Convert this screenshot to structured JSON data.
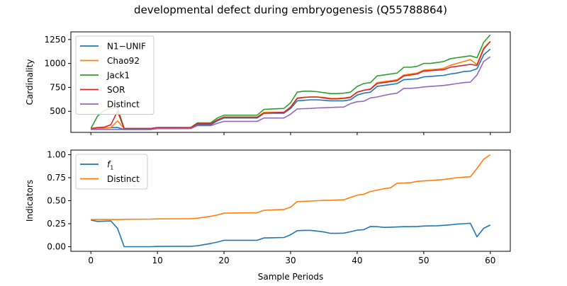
{
  "figure_title": "developmental defect during embryogenesis (Q55788864)",
  "x_axis_label": "Sample Periods",
  "chart_data": [
    {
      "type": "line",
      "ylabel": "Cardinality",
      "xlim": [
        -3,
        63
      ],
      "ylim": [
        280,
        1330
      ],
      "x_ticks": [
        0,
        10,
        20,
        30,
        40,
        50,
        60
      ],
      "x_tick_labels": [
        "",
        "",
        "",
        "",
        "",
        "",
        ""
      ],
      "y_ticks": [
        500,
        750,
        1000,
        1250
      ],
      "y_tick_labels": [
        "500",
        "750",
        "1000",
        "1250"
      ],
      "legend_position": "upper-left",
      "series": [
        {
          "name": "N1−UNIF",
          "color": "#1f77b4",
          "x": [
            0,
            1,
            2,
            3,
            4,
            5,
            9,
            10,
            15,
            16,
            18,
            19,
            20,
            25,
            26,
            29,
            30,
            31,
            32,
            33,
            34,
            35,
            36,
            37,
            38,
            39,
            40,
            41,
            42,
            43,
            44,
            45,
            46,
            47,
            48,
            49,
            50,
            51,
            52,
            53,
            54,
            55,
            56,
            57,
            58,
            59,
            60
          ],
          "y": [
            310,
            320,
            325,
            330,
            330,
            310,
            310,
            320,
            320,
            360,
            360,
            400,
            430,
            430,
            480,
            480,
            530,
            610,
            615,
            620,
            620,
            615,
            610,
            610,
            610,
            620,
            670,
            690,
            700,
            760,
            770,
            780,
            790,
            830,
            835,
            840,
            860,
            865,
            870,
            875,
            890,
            900,
            915,
            920,
            945,
            1090,
            1150
          ]
        },
        {
          "name": "Chao92",
          "color": "#ff7f0e",
          "x": [
            0,
            1,
            2,
            3,
            4,
            5,
            9,
            10,
            15,
            16,
            18,
            19,
            20,
            25,
            26,
            29,
            30,
            31,
            32,
            33,
            34,
            35,
            36,
            37,
            38,
            39,
            40,
            41,
            42,
            43,
            44,
            45,
            46,
            47,
            48,
            49,
            50,
            51,
            52,
            53,
            54,
            55,
            56,
            57,
            58,
            59,
            60
          ],
          "y": [
            310,
            320,
            325,
            330,
            400,
            320,
            320,
            330,
            330,
            370,
            370,
            410,
            440,
            440,
            490,
            490,
            545,
            640,
            645,
            650,
            650,
            645,
            635,
            635,
            640,
            650,
            700,
            720,
            735,
            800,
            810,
            820,
            830,
            880,
            890,
            900,
            930,
            935,
            940,
            950,
            980,
            1000,
            1020,
            1040,
            990,
            1160,
            1230
          ]
        },
        {
          "name": "Jack1",
          "color": "#2ca02c",
          "x": [
            0,
            1,
            2,
            3,
            4,
            5,
            9,
            10,
            15,
            16,
            18,
            19,
            20,
            25,
            26,
            29,
            30,
            31,
            32,
            33,
            34,
            35,
            36,
            37,
            38,
            39,
            40,
            41,
            42,
            43,
            44,
            45,
            46,
            47,
            48,
            49,
            50,
            51,
            52,
            53,
            54,
            55,
            56,
            57,
            58,
            59,
            60
          ],
          "y": [
            320,
            450,
            510,
            530,
            540,
            320,
            320,
            330,
            330,
            380,
            380,
            430,
            460,
            460,
            520,
            530,
            590,
            700,
            710,
            710,
            705,
            695,
            685,
            685,
            690,
            700,
            760,
            790,
            800,
            870,
            880,
            890,
            900,
            960,
            960,
            970,
            1000,
            1000,
            1010,
            1020,
            1050,
            1060,
            1070,
            1080,
            1060,
            1220,
            1300
          ]
        },
        {
          "name": "SOR",
          "color": "#d62728",
          "x": [
            0,
            1,
            2,
            3,
            4,
            5,
            9,
            10,
            15,
            16,
            18,
            19,
            20,
            25,
            26,
            29,
            30,
            31,
            32,
            33,
            34,
            35,
            36,
            37,
            38,
            39,
            40,
            41,
            42,
            43,
            44,
            45,
            46,
            47,
            48,
            49,
            50,
            51,
            52,
            53,
            54,
            55,
            56,
            57,
            58,
            59,
            60
          ],
          "y": [
            320,
            330,
            335,
            360,
            500,
            320,
            320,
            330,
            330,
            370,
            370,
            410,
            440,
            440,
            480,
            490,
            545,
            635,
            645,
            650,
            650,
            640,
            630,
            630,
            635,
            645,
            700,
            720,
            730,
            790,
            800,
            810,
            820,
            870,
            880,
            890,
            920,
            925,
            930,
            935,
            960,
            970,
            980,
            990,
            980,
            1150,
            1230
          ]
        },
        {
          "name": "Distinct",
          "color": "#9467bd",
          "x": [
            0,
            1,
            2,
            3,
            4,
            5,
            9,
            10,
            15,
            16,
            18,
            19,
            20,
            25,
            26,
            29,
            30,
            31,
            32,
            33,
            34,
            35,
            36,
            37,
            38,
            39,
            40,
            41,
            42,
            43,
            44,
            45,
            46,
            47,
            48,
            49,
            50,
            51,
            52,
            53,
            54,
            55,
            56,
            57,
            58,
            59,
            60
          ],
          "y": [
            310,
            310,
            310,
            310,
            310,
            310,
            310,
            320,
            320,
            350,
            350,
            375,
            395,
            395,
            430,
            430,
            470,
            525,
            528,
            530,
            535,
            537,
            540,
            543,
            545,
            580,
            600,
            605,
            640,
            650,
            665,
            680,
            690,
            740,
            740,
            745,
            755,
            760,
            765,
            770,
            780,
            790,
            800,
            805,
            880,
            1020,
            1070
          ]
        }
      ]
    },
    {
      "type": "line",
      "ylabel": "Indicators",
      "xlabel": "Sample Periods",
      "xlim": [
        -3,
        63
      ],
      "ylim": [
        -0.05,
        1.05
      ],
      "x_ticks": [
        0,
        10,
        20,
        30,
        40,
        50,
        60
      ],
      "x_tick_labels": [
        "0",
        "10",
        "20",
        "30",
        "40",
        "50",
        "60"
      ],
      "y_ticks": [
        0.0,
        0.25,
        0.5,
        0.75,
        1.0
      ],
      "y_tick_labels": [
        "0.00",
        "0.25",
        "0.50",
        "0.75",
        "1.00"
      ],
      "legend_position": "upper-left",
      "series": [
        {
          "name": "f",
          "name_sub": "1",
          "color": "#1f77b4",
          "x": [
            0,
            1,
            2,
            3,
            4,
            5,
            9,
            10,
            15,
            16,
            18,
            19,
            20,
            25,
            26,
            29,
            30,
            31,
            32,
            33,
            34,
            35,
            36,
            37,
            38,
            39,
            40,
            41,
            42,
            43,
            44,
            45,
            46,
            47,
            48,
            49,
            50,
            51,
            52,
            53,
            54,
            55,
            56,
            57,
            58,
            59,
            60
          ],
          "y": [
            0.29,
            0.275,
            0.278,
            0.28,
            0.2,
            0.0,
            0.0,
            0.003,
            0.005,
            0.01,
            0.035,
            0.05,
            0.07,
            0.07,
            0.095,
            0.1,
            0.13,
            0.175,
            0.178,
            0.178,
            0.17,
            0.16,
            0.145,
            0.145,
            0.148,
            0.162,
            0.18,
            0.185,
            0.22,
            0.218,
            0.21,
            0.212,
            0.215,
            0.218,
            0.218,
            0.22,
            0.225,
            0.226,
            0.228,
            0.232,
            0.238,
            0.245,
            0.25,
            0.255,
            0.108,
            0.2,
            0.235
          ]
        },
        {
          "name": "Distinct",
          "color": "#ff7f0e",
          "x": [
            0,
            1,
            2,
            3,
            4,
            5,
            9,
            10,
            15,
            16,
            18,
            19,
            20,
            25,
            26,
            29,
            30,
            31,
            32,
            33,
            34,
            35,
            36,
            37,
            38,
            39,
            40,
            41,
            42,
            43,
            44,
            45,
            46,
            47,
            48,
            49,
            50,
            51,
            52,
            53,
            54,
            55,
            56,
            57,
            58,
            59,
            60
          ],
          "y": [
            0.295,
            0.295,
            0.295,
            0.295,
            0.295,
            0.298,
            0.3,
            0.302,
            0.305,
            0.31,
            0.33,
            0.345,
            0.365,
            0.37,
            0.395,
            0.405,
            0.43,
            0.49,
            0.493,
            0.496,
            0.5,
            0.503,
            0.505,
            0.508,
            0.51,
            0.535,
            0.56,
            0.57,
            0.6,
            0.615,
            0.63,
            0.64,
            0.69,
            0.692,
            0.695,
            0.71,
            0.715,
            0.72,
            0.725,
            0.73,
            0.74,
            0.75,
            0.755,
            0.76,
            0.85,
            0.95,
            1.0
          ]
        }
      ]
    }
  ]
}
